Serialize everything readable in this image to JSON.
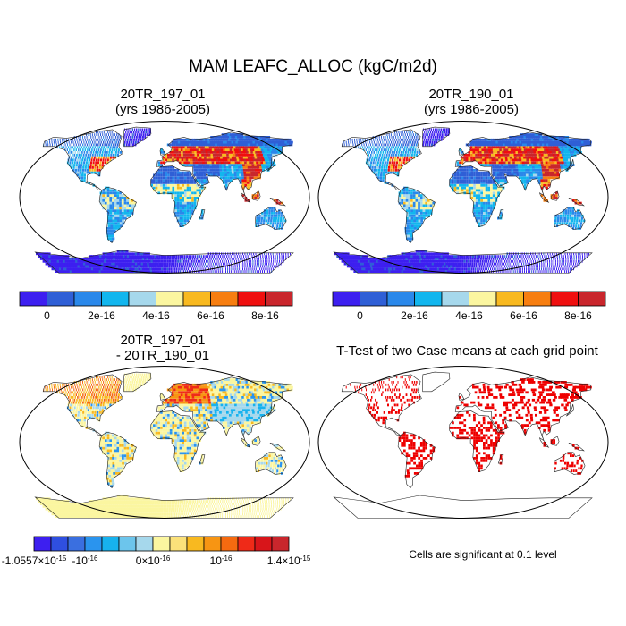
{
  "figure_title": "MAM LEAFC_ALLOC (kgC/m2d)",
  "chart_data": [
    {
      "type": "heatmap",
      "title": "20TR_197_01",
      "subtitle": "(yrs 1986-2005)",
      "colorbar": {
        "colors": [
          "#3d1ff0",
          "#2f5fd6",
          "#2a88ea",
          "#12b6ee",
          "#a6d8ec",
          "#fbf6a0",
          "#f8b920",
          "#f77e10",
          "#ef0f0f",
          "#c9262c"
        ],
        "tick_labels": [
          "0",
          "2e-16",
          "4e-16",
          "6e-16",
          "8e-16"
        ]
      }
    },
    {
      "type": "heatmap",
      "title": "20TR_190_01",
      "subtitle": "(yrs 1986-2005)",
      "colorbar": {
        "colors": [
          "#3d1ff0",
          "#2f5fd6",
          "#2a88ea",
          "#12b6ee",
          "#a6d8ec",
          "#fbf6a0",
          "#f8b920",
          "#f77e10",
          "#ef0f0f",
          "#c9262c"
        ],
        "tick_labels": [
          "0",
          "2e-16",
          "4e-16",
          "6e-16",
          "8e-16"
        ]
      }
    },
    {
      "type": "heatmap",
      "title": "20TR_197_01",
      "subtitle": "- 20TR_190_01",
      "colorbar": {
        "colors": [
          "#3d1ff0",
          "#2f4fe0",
          "#3a6fe0",
          "#2a94ee",
          "#17b2ee",
          "#6cc5ec",
          "#a6d8ec",
          "#fbf6a0",
          "#fbe17a",
          "#f8b920",
          "#f79513",
          "#f56a10",
          "#ef2a18",
          "#d8151a",
          "#c9262c"
        ],
        "tick_labels": [
          "-1.0557×10",
          "-10",
          "0×10",
          "10",
          "1.4×10"
        ],
        "tick_exponents": [
          "-15",
          "-16",
          "-16",
          "-16",
          "-15"
        ]
      }
    },
    {
      "type": "heatmap",
      "title": "T-Test of two Case means at each grid point",
      "significance_color": "#ee0000",
      "note": "Cells are significant at 0.1 level"
    }
  ],
  "colors": {
    "land_low": "#2f5fd6",
    "land_mid": "#2a88ea",
    "land_high": "#ef0f0f",
    "diff_neutral": "#fbf6a0",
    "coast": "#222222"
  }
}
